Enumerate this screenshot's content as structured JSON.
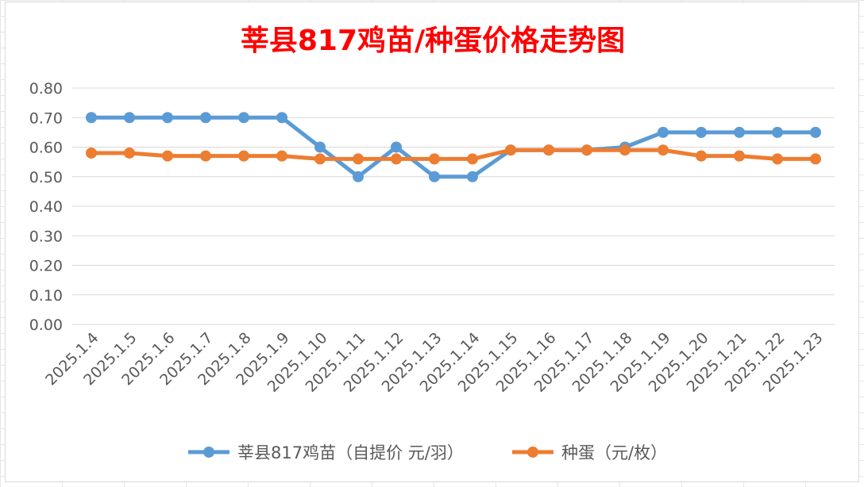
{
  "chart_data": {
    "type": "line",
    "title": "莘县817鸡苗/种蛋价格走势图",
    "xlabel": "",
    "ylabel": "",
    "categories": [
      "2025.1.4",
      "2025.1.5",
      "2025.1.6",
      "2025.1.7",
      "2025.1.8",
      "2025.1.9",
      "2025.1.10",
      "2025.1.11",
      "2025.1.12",
      "2025.1.13",
      "2025.1.14",
      "2025.1.15",
      "2025.1.16",
      "2025.1.17",
      "2025.1.18",
      "2025.1.19",
      "2025.1.20",
      "2025.1.21",
      "2025.1.22",
      "2025.1.23"
    ],
    "ylim": [
      0,
      0.8
    ],
    "yticks": [
      "0.00",
      "0.10",
      "0.20",
      "0.30",
      "0.40",
      "0.50",
      "0.60",
      "0.70",
      "0.80"
    ],
    "grid": true,
    "legend_position": "bottom",
    "series": [
      {
        "name": "莘县817鸡苗（自提价 元/羽）",
        "color": "#5B9BD5",
        "values": [
          0.7,
          0.7,
          0.7,
          0.7,
          0.7,
          0.7,
          0.6,
          0.5,
          0.6,
          0.5,
          0.5,
          0.59,
          0.59,
          0.59,
          0.6,
          0.65,
          0.65,
          0.65,
          0.65,
          0.65
        ]
      },
      {
        "name": "种蛋（元/枚）",
        "color": "#ED7D31",
        "values": [
          0.58,
          0.58,
          0.57,
          0.57,
          0.57,
          0.57,
          0.56,
          0.56,
          0.56,
          0.56,
          0.56,
          0.59,
          0.59,
          0.59,
          0.59,
          0.59,
          0.57,
          0.57,
          0.56,
          0.56
        ]
      }
    ],
    "title_color": "#FF0000",
    "text_color": "#595959",
    "gridline_color": "#D9D9D9"
  }
}
